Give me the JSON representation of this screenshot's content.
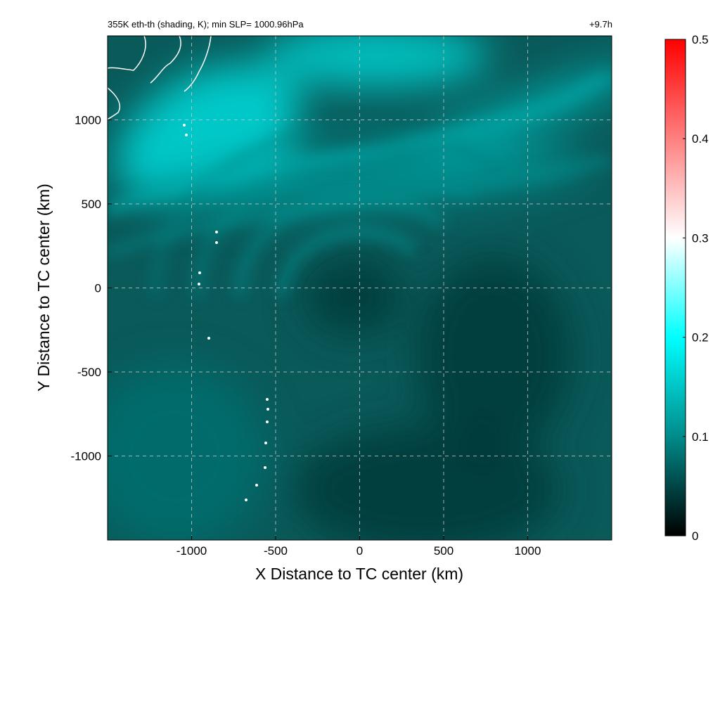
{
  "chart_data": {
    "type": "heatmap",
    "title_left": "355K eth-th (shading, K); min SLP= 1000.96hPa",
    "title_right": "+9.7h",
    "xlabel": "X Distance to TC center (km)",
    "ylabel": "Y Distance to TC center (km)",
    "xlim": [
      -1500,
      1500
    ],
    "ylim": [
      -1500,
      1500
    ],
    "xticks": [
      -1000,
      -500,
      0,
      500,
      1000
    ],
    "xtick_labels": [
      "-1000",
      "-500",
      "0",
      "500",
      "1000"
    ],
    "yticks": [
      -1000,
      -500,
      0,
      500,
      1000
    ],
    "ytick_labels": [
      "-1000",
      "-500",
      "0",
      "500",
      "1000"
    ],
    "grid": true,
    "colorbar": {
      "range": [
        0,
        0.5
      ],
      "ticks": [
        0,
        0.1,
        0.2,
        0.3,
        0.4,
        0.5
      ],
      "tick_labels": [
        "0",
        "0.1",
        "0.2",
        "0.3",
        "0.4",
        "0.5"
      ],
      "colors": [
        {
          "value": 0.0,
          "color": "#000000"
        },
        {
          "value": 0.1,
          "color": "#008b8b"
        },
        {
          "value": 0.2,
          "color": "#00ffff"
        },
        {
          "value": 0.3,
          "color": "#ffffff"
        },
        {
          "value": 0.4,
          "color": "#ff8080"
        },
        {
          "value": 0.5,
          "color": "#ff0000"
        }
      ]
    },
    "field_features": [
      {
        "name": "northwest-moist-band",
        "x_km": -900,
        "y_km": 900,
        "value": 0.17
      },
      {
        "name": "north-plume",
        "x_km": 100,
        "y_km": 1380,
        "value": 0.16
      },
      {
        "name": "northeast-filament",
        "x_km": 900,
        "y_km": 1000,
        "value": 0.13
      },
      {
        "name": "mid-band",
        "x_km": 0,
        "y_km": 650,
        "value": 0.11
      },
      {
        "name": "tc-core-dry-slot",
        "x_km": -40,
        "y_km": -50,
        "value": 0.04
      },
      {
        "name": "east-dry-region",
        "x_km": 800,
        "y_km": -400,
        "value": 0.04
      },
      {
        "name": "south-dry-region",
        "x_km": 400,
        "y_km": -1200,
        "value": 0.04
      },
      {
        "name": "southwest-region",
        "x_km": -1100,
        "y_km": -1000,
        "value": 0.08
      }
    ]
  },
  "colors": {
    "background_field": "#0a5a5a",
    "gridline": "#c8c8c8",
    "coastline": "#ffffff"
  }
}
